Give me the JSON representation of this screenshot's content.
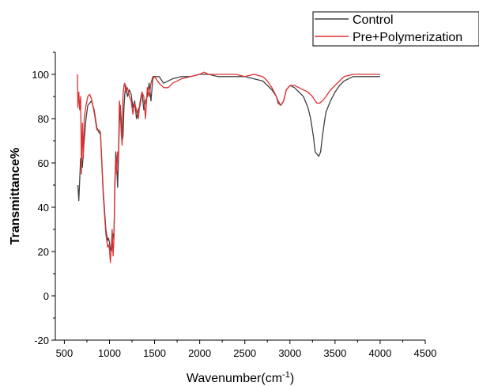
{
  "chart_data": {
    "type": "line",
    "title": "",
    "xlabel": "Wavenumber(cm",
    "xlabel_sup": "-1",
    "xlabel_tail": ")",
    "ylabel": "Transmittance%",
    "xlim": [
      400,
      4500
    ],
    "ylim": [
      -20,
      110
    ],
    "xticks": [
      500,
      1000,
      1500,
      2000,
      2500,
      3000,
      3500,
      4000,
      4500
    ],
    "yticks": [
      -20,
      0,
      20,
      40,
      60,
      80,
      100
    ],
    "grid": false,
    "legend_position": "top-right",
    "series": [
      {
        "name": "Control",
        "color": "#404040",
        "x": [
          650,
          660,
          680,
          700,
          720,
          740,
          760,
          780,
          800,
          830,
          860,
          880,
          900,
          930,
          960,
          980,
          990,
          1000,
          1010,
          1020,
          1030,
          1040,
          1050,
          1060,
          1070,
          1080,
          1090,
          1100,
          1110,
          1120,
          1130,
          1140,
          1150,
          1160,
          1170,
          1180,
          1200,
          1220,
          1240,
          1260,
          1280,
          1300,
          1320,
          1340,
          1360,
          1380,
          1400,
          1420,
          1440,
          1460,
          1480,
          1500,
          1550,
          1600,
          1650,
          1700,
          1800,
          1900,
          2000,
          2100,
          2200,
          2300,
          2400,
          2500,
          2600,
          2700,
          2750,
          2800,
          2850,
          2870,
          2900,
          2930,
          2960,
          3000,
          3050,
          3100,
          3150,
          3200,
          3230,
          3260,
          3280,
          3300,
          3320,
          3340,
          3360,
          3380,
          3400,
          3450,
          3500,
          3550,
          3600,
          3650,
          3700,
          3800,
          3900,
          4000
        ],
        "y": [
          50,
          43,
          62,
          58,
          70,
          80,
          86,
          87,
          88,
          84,
          76,
          74,
          73,
          48,
          30,
          25,
          26,
          24,
          21,
          20,
          22,
          28,
          27,
          48,
          65,
          60,
          49,
          62,
          78,
          86,
          80,
          70,
          72,
          85,
          91,
          95,
          90,
          93,
          91,
          85,
          88,
          80,
          84,
          86,
          92,
          84,
          88,
          90,
          96,
          88,
          98,
          99,
          99,
          96,
          97,
          98,
          99,
          99,
          100,
          100,
          99,
          99,
          99,
          99,
          98,
          97,
          95,
          93,
          90,
          87,
          86,
          88,
          93,
          95,
          94,
          92,
          90,
          85,
          80,
          72,
          65,
          64,
          63,
          65,
          72,
          78,
          83,
          88,
          92,
          95,
          97,
          98,
          99,
          99,
          99,
          99
        ]
      },
      {
        "name": "Pre+Polymerization",
        "color": "#e03030",
        "x": [
          645,
          650,
          660,
          670,
          680,
          690,
          700,
          710,
          720,
          740,
          760,
          780,
          800,
          830,
          860,
          880,
          900,
          930,
          960,
          980,
          990,
          1000,
          1010,
          1020,
          1030,
          1040,
          1050,
          1060,
          1070,
          1080,
          1090,
          1100,
          1110,
          1120,
          1130,
          1140,
          1150,
          1160,
          1170,
          1180,
          1200,
          1220,
          1240,
          1260,
          1280,
          1300,
          1320,
          1340,
          1360,
          1380,
          1400,
          1420,
          1440,
          1460,
          1480,
          1500,
          1550,
          1600,
          1650,
          1700,
          1800,
          1900,
          2000,
          2050,
          2100,
          2200,
          2300,
          2400,
          2500,
          2600,
          2700,
          2750,
          2800,
          2850,
          2870,
          2900,
          2930,
          2960,
          3000,
          3050,
          3100,
          3150,
          3200,
          3250,
          3280,
          3300,
          3330,
          3360,
          3400,
          3450,
          3500,
          3550,
          3600,
          3700,
          3800,
          3900,
          4000
        ],
        "y": [
          100,
          85,
          92,
          84,
          90,
          55,
          78,
          62,
          80,
          86,
          90,
          91,
          89,
          83,
          75,
          75,
          74,
          46,
          28,
          22,
          23,
          21,
          15,
          22,
          30,
          18,
          26,
          52,
          62,
          55,
          65,
          62,
          88,
          84,
          74,
          68,
          90,
          95,
          96,
          92,
          94,
          90,
          88,
          82,
          87,
          84,
          80,
          88,
          92,
          90,
          80,
          94,
          90,
          96,
          99,
          99,
          96,
          94,
          94,
          96,
          98,
          99,
          100,
          101,
          100,
          100,
          100,
          100,
          99,
          100,
          99,
          97,
          94,
          90,
          88,
          86,
          88,
          93,
          95,
          95,
          94,
          93,
          92,
          90,
          88,
          87,
          87,
          88,
          90,
          93,
          95,
          97,
          99,
          100,
          100,
          100,
          100
        ]
      }
    ]
  }
}
